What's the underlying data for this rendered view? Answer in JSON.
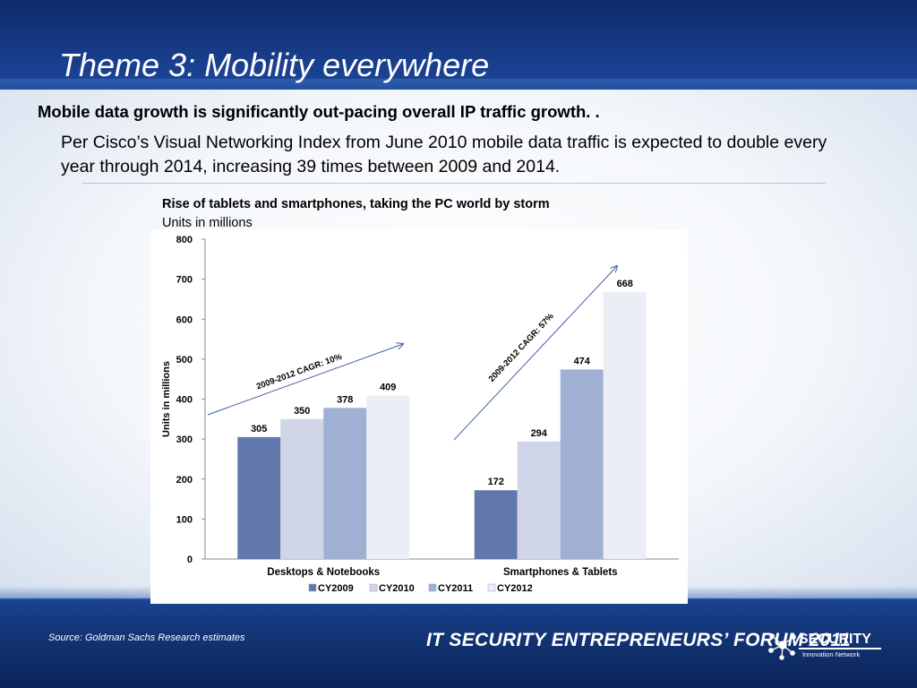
{
  "slide": {
    "title": "Theme 3: Mobility everywhere",
    "headline": "Mobile data growth is significantly out-pacing overall IP traffic growth. .",
    "body": "Per Cisco’s Visual Networking Index from June 2010 mobile data traffic is expected to double every year through 2014, increasing 39 times between 2009 and 2014."
  },
  "chart_data": {
    "type": "bar",
    "title": "Rise of tablets and smartphones, taking the PC world by storm",
    "subtitle": "Units in millions",
    "ylabel": "Units in millions",
    "ylim": [
      0,
      800
    ],
    "yticks": [
      0,
      100,
      200,
      300,
      400,
      500,
      600,
      700,
      800
    ],
    "categories": [
      "Desktops & Notebooks",
      "Smartphones & Tablets"
    ],
    "series": [
      {
        "name": "CY2009",
        "values": [
          305,
          172
        ],
        "color": "#6178ad"
      },
      {
        "name": "CY2010",
        "values": [
          350,
          294
        ],
        "color": "#d0d5e8"
      },
      {
        "name": "CY2011",
        "values": [
          378,
          474
        ],
        "color": "#9fb0d2"
      },
      {
        "name": "CY2012",
        "values": [
          409,
          668
        ],
        "color": "#eceef5"
      }
    ],
    "annotations": [
      "2009-2012 CAGR: 10%",
      "2009-2012 CAGR: 57%"
    ],
    "legend_position": "bottom",
    "grid": false
  },
  "footer": {
    "source": "Source:  Goldman Sachs Research estimates",
    "forum": "IT SECURITY ENTREPRENEURS’ FORUM 2011",
    "logo_name": "SECURITY",
    "logo_tagline": "Innovation Network",
    "logo_icon": "network-nodes-icon"
  },
  "colors": {
    "band_dark": "#123373",
    "band_light": "#1d4799",
    "divider": "#b8c6da",
    "arrow": "#3f5ea8"
  }
}
